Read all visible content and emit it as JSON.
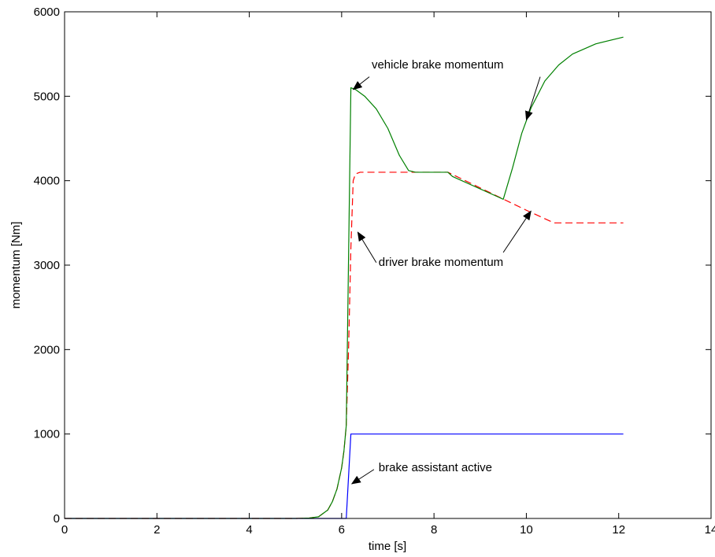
{
  "chart_data": {
    "type": "line",
    "title": "",
    "xlabel": "time [s]",
    "ylabel": "momentum [Nm]",
    "xlim": [
      0,
      14
    ],
    "ylim": [
      0,
      6000
    ],
    "xticks": [
      0,
      2,
      4,
      6,
      8,
      10,
      12,
      14
    ],
    "yticks": [
      0,
      1000,
      2000,
      3000,
      4000,
      5000,
      6000
    ],
    "xtick_labels": [
      "0",
      "2",
      "4",
      "6",
      "8",
      "10",
      "12",
      "14"
    ],
    "ytick_labels": [
      "0",
      "1000",
      "2000",
      "3000",
      "4000",
      "5000",
      "6000"
    ],
    "grid": false,
    "series": [
      {
        "key": "brake-assistant",
        "color": "#0000ff",
        "dash": "solid",
        "points": [
          [
            0,
            0
          ],
          [
            6.1,
            0
          ],
          [
            6.2,
            1000
          ],
          [
            12.1,
            1000
          ]
        ]
      },
      {
        "key": "driver-brake",
        "color": "#ff0000",
        "dash": "dashed",
        "points": [
          [
            0,
            0
          ],
          [
            5.0,
            0
          ],
          [
            5.3,
            5
          ],
          [
            5.5,
            20
          ],
          [
            5.7,
            100
          ],
          [
            5.8,
            200
          ],
          [
            5.9,
            350
          ],
          [
            6.0,
            600
          ],
          [
            6.05,
            800
          ],
          [
            6.1,
            1100
          ],
          [
            6.15,
            2000
          ],
          [
            6.2,
            3200
          ],
          [
            6.25,
            4000
          ],
          [
            6.3,
            4080
          ],
          [
            6.4,
            4100
          ],
          [
            8.3,
            4100
          ],
          [
            10.0,
            3650
          ],
          [
            10.6,
            3500
          ],
          [
            12.1,
            3500
          ]
        ]
      },
      {
        "key": "vehicle-brake",
        "color": "#008000",
        "dash": "solid",
        "points": [
          [
            0,
            0
          ],
          [
            5.0,
            0
          ],
          [
            5.3,
            5
          ],
          [
            5.5,
            20
          ],
          [
            5.7,
            100
          ],
          [
            5.8,
            200
          ],
          [
            5.9,
            350
          ],
          [
            6.0,
            600
          ],
          [
            6.05,
            800
          ],
          [
            6.1,
            1100
          ],
          [
            6.2,
            5100
          ],
          [
            6.3,
            5080
          ],
          [
            6.5,
            5000
          ],
          [
            6.75,
            4850
          ],
          [
            7.0,
            4620
          ],
          [
            7.25,
            4300
          ],
          [
            7.45,
            4120
          ],
          [
            7.6,
            4100
          ],
          [
            8.3,
            4100
          ],
          [
            8.4,
            4050
          ],
          [
            9.5,
            3780
          ],
          [
            9.7,
            4150
          ],
          [
            9.9,
            4560
          ],
          [
            10.1,
            4860
          ],
          [
            10.4,
            5180
          ],
          [
            10.7,
            5370
          ],
          [
            11.0,
            5500
          ],
          [
            11.5,
            5620
          ],
          [
            12.1,
            5700
          ]
        ]
      }
    ],
    "annotations": [
      {
        "key": "vehicle-brake",
        "text": "vehicle brake momentum",
        "text_x": 6.65,
        "text_y": 5330,
        "anchor": "start",
        "arrows": [
          {
            "from": [
              6.6,
              5230
            ],
            "to": [
              6.25,
              5080
            ]
          },
          {
            "from": [
              10.3,
              5230
            ],
            "to": [
              10.0,
              4720
            ]
          }
        ]
      },
      {
        "key": "driver-brake",
        "text": "driver brake momentum",
        "text_x": 6.8,
        "text_y": 2990,
        "anchor": "start",
        "arrows": [
          {
            "from": [
              6.75,
              3030
            ],
            "to": [
              6.35,
              3390
            ]
          },
          {
            "from": [
              9.5,
              3150
            ],
            "to": [
              10.1,
              3640
            ]
          }
        ]
      },
      {
        "key": "brake-assistant",
        "text": "brake assistant active",
        "text_x": 6.8,
        "text_y": 560,
        "anchor": "start",
        "arrows": [
          {
            "from": [
              6.7,
              580
            ],
            "to": [
              6.22,
              410
            ]
          }
        ]
      }
    ]
  }
}
